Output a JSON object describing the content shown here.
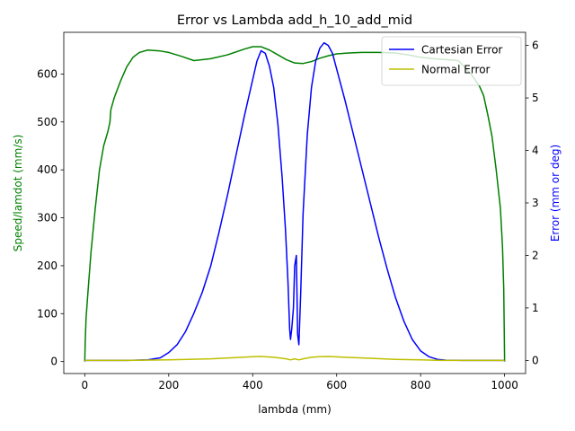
{
  "chart_data": {
    "type": "line",
    "title": "Error vs Lambda add_h_10_add_mid",
    "xlabel": "lambda (mm)",
    "ylabel_left": "Speed/lamdot (mm/s)",
    "ylabel_right": "Error (mm or deg)",
    "xlim": [
      -50,
      1050
    ],
    "ylim_left": [
      -25,
      687
    ],
    "ylim_right": [
      -0.25,
      6.25
    ],
    "x_ticks": [
      0,
      200,
      400,
      600,
      800,
      1000
    ],
    "y_left_ticks": [
      0,
      100,
      200,
      300,
      400,
      500,
      600
    ],
    "y_right_ticks": [
      0,
      1,
      2,
      3,
      4,
      5,
      6
    ],
    "legend_position": "upper-right",
    "grid": false,
    "colors": {
      "speed": "#008000",
      "cartesian": "#0000ff",
      "normal": "#bfbf00",
      "left_label": "#008000",
      "right_label": "#0000ff"
    },
    "series": [
      {
        "name": "",
        "axis": "left",
        "color": "#008000",
        "points": [
          [
            0,
            0
          ],
          [
            1,
            40
          ],
          [
            3,
            90
          ],
          [
            8,
            150
          ],
          [
            15,
            230
          ],
          [
            25,
            320
          ],
          [
            35,
            400
          ],
          [
            45,
            450
          ],
          [
            55,
            480
          ],
          [
            60,
            500
          ],
          [
            62,
            525
          ],
          [
            70,
            550
          ],
          [
            85,
            585
          ],
          [
            100,
            615
          ],
          [
            115,
            635
          ],
          [
            130,
            645
          ],
          [
            150,
            650
          ],
          [
            180,
            648
          ],
          [
            200,
            645
          ],
          [
            230,
            637
          ],
          [
            260,
            628
          ],
          [
            300,
            632
          ],
          [
            340,
            640
          ],
          [
            380,
            652
          ],
          [
            400,
            657
          ],
          [
            420,
            657
          ],
          [
            440,
            650
          ],
          [
            460,
            640
          ],
          [
            480,
            630
          ],
          [
            500,
            623
          ],
          [
            520,
            622
          ],
          [
            540,
            626
          ],
          [
            560,
            633
          ],
          [
            580,
            638
          ],
          [
            600,
            642
          ],
          [
            630,
            644
          ],
          [
            660,
            645
          ],
          [
            700,
            645
          ],
          [
            740,
            644
          ],
          [
            770,
            640
          ],
          [
            800,
            635
          ],
          [
            830,
            632
          ],
          [
            860,
            630
          ],
          [
            890,
            628
          ],
          [
            920,
            600
          ],
          [
            940,
            575
          ],
          [
            950,
            555
          ],
          [
            960,
            515
          ],
          [
            970,
            470
          ],
          [
            980,
            400
          ],
          [
            990,
            320
          ],
          [
            995,
            240
          ],
          [
            998,
            150
          ],
          [
            1000,
            0
          ]
        ]
      },
      {
        "name": "Cartesian Error",
        "axis": "right",
        "color": "#0000ff",
        "points": [
          [
            0,
            0
          ],
          [
            50,
            0
          ],
          [
            100,
            0
          ],
          [
            150,
            0.01
          ],
          [
            180,
            0.05
          ],
          [
            200,
            0.15
          ],
          [
            220,
            0.3
          ],
          [
            240,
            0.55
          ],
          [
            260,
            0.9
          ],
          [
            280,
            1.3
          ],
          [
            300,
            1.8
          ],
          [
            320,
            2.45
          ],
          [
            340,
            3.15
          ],
          [
            360,
            3.9
          ],
          [
            380,
            4.65
          ],
          [
            400,
            5.35
          ],
          [
            410,
            5.7
          ],
          [
            420,
            5.9
          ],
          [
            430,
            5.85
          ],
          [
            440,
            5.6
          ],
          [
            450,
            5.2
          ],
          [
            460,
            4.5
          ],
          [
            470,
            3.5
          ],
          [
            478,
            2.5
          ],
          [
            484,
            1.5
          ],
          [
            488,
            0.6
          ],
          [
            490,
            0.4
          ],
          [
            493,
            0.6
          ],
          [
            497,
            1.0
          ],
          [
            500,
            1.8
          ],
          [
            504,
            2.0
          ],
          [
            507,
            0.5
          ],
          [
            510,
            0.3
          ],
          [
            514,
            1.2
          ],
          [
            520,
            2.8
          ],
          [
            530,
            4.3
          ],
          [
            540,
            5.2
          ],
          [
            550,
            5.7
          ],
          [
            560,
            5.95
          ],
          [
            570,
            6.05
          ],
          [
            580,
            6.0
          ],
          [
            590,
            5.85
          ],
          [
            600,
            5.55
          ],
          [
            620,
            4.95
          ],
          [
            640,
            4.3
          ],
          [
            660,
            3.65
          ],
          [
            680,
            3.0
          ],
          [
            700,
            2.35
          ],
          [
            720,
            1.75
          ],
          [
            740,
            1.2
          ],
          [
            760,
            0.75
          ],
          [
            780,
            0.4
          ],
          [
            800,
            0.18
          ],
          [
            820,
            0.07
          ],
          [
            840,
            0.02
          ],
          [
            860,
            0.005
          ],
          [
            900,
            0
          ],
          [
            1000,
            0
          ]
        ]
      },
      {
        "name": "Normal Error",
        "axis": "right",
        "color": "#bfbf00",
        "points": [
          [
            0,
            0
          ],
          [
            100,
            0
          ],
          [
            200,
            0.01
          ],
          [
            300,
            0.03
          ],
          [
            350,
            0.05
          ],
          [
            400,
            0.07
          ],
          [
            420,
            0.075
          ],
          [
            450,
            0.06
          ],
          [
            480,
            0.03
          ],
          [
            490,
            0.01
          ],
          [
            500,
            0.03
          ],
          [
            510,
            0.01
          ],
          [
            520,
            0.03
          ],
          [
            540,
            0.06
          ],
          [
            560,
            0.07
          ],
          [
            580,
            0.075
          ],
          [
            620,
            0.06
          ],
          [
            680,
            0.04
          ],
          [
            740,
            0.02
          ],
          [
            800,
            0.01
          ],
          [
            850,
            0
          ],
          [
            1000,
            0
          ]
        ]
      }
    ]
  }
}
